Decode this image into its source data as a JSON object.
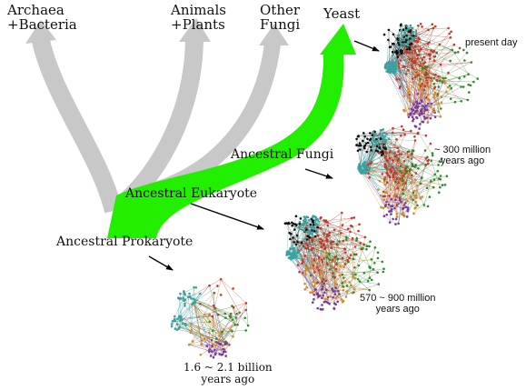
{
  "tree": {
    "leaves": {
      "archaea": "Archaea\n+Bacteria",
      "animals": "Animals\n+Plants",
      "other_fungi": "Other\nFungi",
      "yeast": "Yeast"
    },
    "nodes": {
      "prokaryote": "Ancestral Prokaryote",
      "eukaryote": "Ancestral Eukaryote",
      "fungi": "Ancestral Fungi"
    }
  },
  "networks": {
    "present": "present day",
    "fungi_age": "~ 300 million\nyears ago",
    "eukaryote_age": "570 ~ 900 million\nyears ago",
    "prokaryote_age": "1.6 ~ 2.1 billion\nyears ago"
  },
  "colors": {
    "yeast_lineage": "#22ee00",
    "other_lineage": "#c8c8c8",
    "cluster_red": "#c0392b",
    "cluster_green": "#2e8b2e",
    "cluster_black": "#111111",
    "cluster_teal": "#3aa0a0",
    "cluster_orange": "#d08a2a",
    "cluster_purple": "#7a3a9a"
  }
}
